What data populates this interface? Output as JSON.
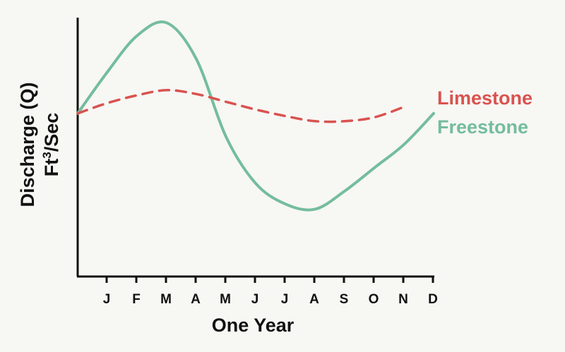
{
  "chart_data": {
    "type": "line",
    "xlabel": "One Year",
    "ylabel_line1": "Discharge (Q)",
    "ylabel_line2_base": "Ft",
    "ylabel_line2_sup": "3",
    "ylabel_line2_rest": "/Sec",
    "categories": [
      "J",
      "F",
      "M",
      "A",
      "M",
      "J",
      "J",
      "A",
      "S",
      "O",
      "N",
      "D"
    ],
    "x_range": [
      0,
      12
    ],
    "y_range": [
      0,
      10
    ],
    "grid": false,
    "legend_placement": "right",
    "series": [
      {
        "name": "Limestone",
        "color": "#d9534f",
        "style": "dashed",
        "points": [
          [
            0,
            6.3
          ],
          [
            1,
            6.7
          ],
          [
            2,
            7.0
          ],
          [
            3,
            7.2
          ],
          [
            4,
            7.05
          ],
          [
            5,
            6.75
          ],
          [
            6,
            6.45
          ],
          [
            7,
            6.2
          ],
          [
            8,
            6.0
          ],
          [
            9,
            6.0
          ],
          [
            10,
            6.15
          ],
          [
            11,
            6.55
          ]
        ]
      },
      {
        "name": "Freestone",
        "color": "#74bd9c",
        "style": "solid",
        "points": [
          [
            0,
            6.3
          ],
          [
            1,
            7.9
          ],
          [
            2,
            9.3
          ],
          [
            3,
            9.8
          ],
          [
            4,
            8.4
          ],
          [
            5,
            5.4
          ],
          [
            6,
            3.6
          ],
          [
            7,
            2.8
          ],
          [
            8,
            2.6
          ],
          [
            9,
            3.3
          ],
          [
            10,
            4.2
          ],
          [
            11,
            5.1
          ],
          [
            12,
            6.3
          ]
        ]
      }
    ]
  }
}
